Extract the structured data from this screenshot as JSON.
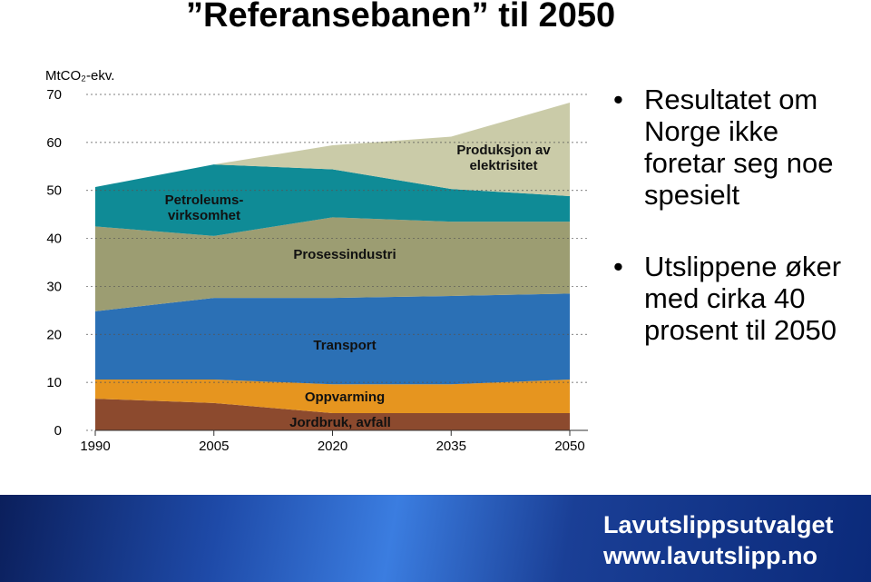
{
  "slide": {
    "title": "”Referansebanen” til 2050",
    "bullets": [
      "Resultatet om Norge ikke foretar seg noe spesielt",
      "Utslippene øker med cirka 40 prosent til 2050"
    ],
    "footer": {
      "name": "Lavutslippsutvalget",
      "url": "www.lavutslipp.no"
    }
  },
  "chart_data": {
    "type": "stacked-area",
    "y_label": "MtCO₂-ekv.",
    "x": [
      1990,
      2005,
      2020,
      2035,
      2050
    ],
    "xlim": [
      1990,
      2050
    ],
    "xticks": [
      1990,
      2005,
      2020,
      2035,
      2050
    ],
    "ylim": [
      0,
      70
    ],
    "yticks": [
      0,
      10,
      20,
      30,
      40,
      50,
      60,
      70
    ],
    "grid": true,
    "series": [
      {
        "name": "Jordbruk, avfall",
        "color": "#8c4a2e",
        "values": [
          6.6,
          5.7,
          3.6,
          3.6,
          3.6
        ]
      },
      {
        "name": "Oppvarming",
        "color": "#e6951f",
        "values": [
          4.0,
          4.9,
          6.0,
          6.0,
          7.0
        ]
      },
      {
        "name": "Transport",
        "color": "#2b70b5",
        "values": [
          14.2,
          17.0,
          18.0,
          18.4,
          17.9
        ]
      },
      {
        "name": "Prosessindustri",
        "color": "#9c9d72",
        "values": [
          17.7,
          12.9,
          16.8,
          15.5,
          15.0
        ]
      },
      {
        "name": "Petroleums-virksomhet",
        "color": "#0f8b96",
        "values": [
          8.2,
          14.9,
          10.0,
          6.8,
          5.3
        ]
      },
      {
        "name": "Produksjon av elektrisitet",
        "color": "#cacba8",
        "values": [
          0,
          0,
          5.0,
          10.9,
          19.5
        ]
      }
    ]
  }
}
